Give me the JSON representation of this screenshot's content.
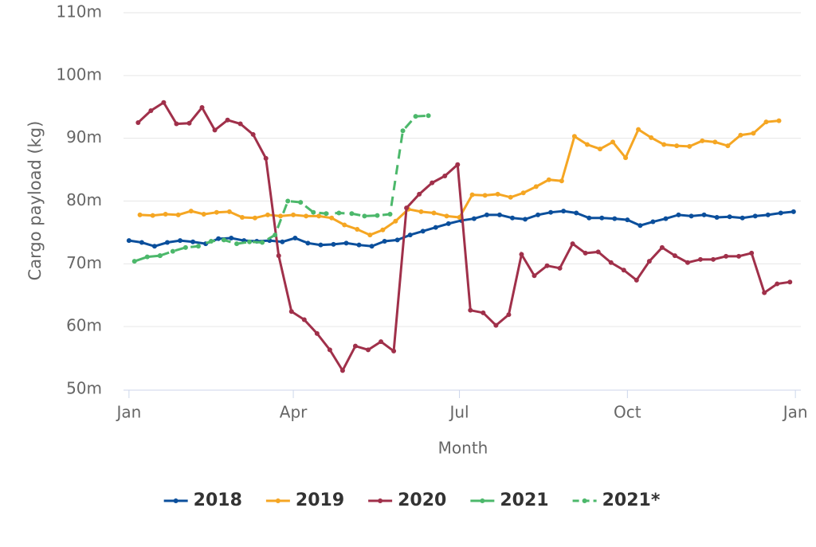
{
  "chart_data": {
    "type": "line",
    "ylabel": "Cargo payload (kg)",
    "xlabel": "Month",
    "xlim": [
      -3,
      368
    ],
    "xticks": [
      {
        "value": 0,
        "label": "Jan"
      },
      {
        "value": 90,
        "label": "Apr"
      },
      {
        "value": 181,
        "label": "Jul"
      },
      {
        "value": 273,
        "label": "Oct"
      },
      {
        "value": 365,
        "label": "Jan"
      }
    ],
    "ylim": [
      50,
      110
    ],
    "yticks": [
      {
        "value": 50,
        "label": "50m"
      },
      {
        "value": 60,
        "label": "60m"
      },
      {
        "value": 70,
        "label": "70m"
      },
      {
        "value": 80,
        "label": "80m"
      },
      {
        "value": 90,
        "label": "90m"
      },
      {
        "value": 100,
        "label": "100m"
      },
      {
        "value": 110,
        "label": "110m"
      }
    ],
    "grid": true,
    "legend": "bottom",
    "series": [
      {
        "name": "2018",
        "color": "#0b4f9c",
        "dashed": false,
        "x": [
          0,
          7,
          14,
          21,
          28,
          35,
          42,
          49,
          56,
          63,
          70,
          77,
          84,
          91,
          98,
          105,
          112,
          119,
          126,
          133,
          140,
          147,
          154,
          161,
          168,
          175,
          182,
          189,
          196,
          203,
          210,
          217,
          224,
          231,
          238,
          245,
          252,
          259,
          266,
          273,
          280,
          287,
          294,
          301,
          308,
          315,
          322,
          329,
          336,
          343,
          350,
          357,
          364
        ],
        "values": [
          73.7,
          73.4,
          72.8,
          73.4,
          73.7,
          73.5,
          73.2,
          74.0,
          74.1,
          73.7,
          73.6,
          73.7,
          73.5,
          74.1,
          73.3,
          73.0,
          73.1,
          73.3,
          73.0,
          72.8,
          73.6,
          73.8,
          74.6,
          75.2,
          75.8,
          76.4,
          76.9,
          77.2,
          77.8,
          77.8,
          77.3,
          77.1,
          77.8,
          78.2,
          78.4,
          78.1,
          77.3,
          77.3,
          77.2,
          77.0,
          76.1,
          76.7,
          77.2,
          77.8,
          77.6,
          77.8,
          77.4,
          77.5,
          77.3,
          77.6,
          77.8,
          78.1,
          78.3
        ]
      },
      {
        "name": "2019",
        "color": "#f5a623",
        "dashed": false,
        "x": [
          6,
          13,
          20,
          27,
          34,
          41,
          48,
          55,
          62,
          69,
          76,
          83,
          90,
          97,
          104,
          111,
          118,
          125,
          132,
          139,
          146,
          153,
          160,
          167,
          174,
          181,
          188,
          195,
          202,
          209,
          216,
          223,
          230,
          237,
          244,
          251,
          258,
          265,
          272,
          279,
          286,
          293,
          300,
          307,
          314,
          321,
          328,
          335,
          342,
          349,
          356
        ],
        "values": [
          77.8,
          77.7,
          77.9,
          77.8,
          78.4,
          77.9,
          78.2,
          78.3,
          77.4,
          77.3,
          77.8,
          77.6,
          77.8,
          77.6,
          77.6,
          77.3,
          76.2,
          75.5,
          74.6,
          75.4,
          76.8,
          78.7,
          78.3,
          78.1,
          77.6,
          77.4,
          81.0,
          80.9,
          81.1,
          80.6,
          81.3,
          82.3,
          83.4,
          83.2,
          90.3,
          89.0,
          88.3,
          89.4,
          86.9,
          91.4,
          90.1,
          89.0,
          88.8,
          88.7,
          89.6,
          89.4,
          88.8,
          90.5,
          90.8,
          92.6,
          92.8
        ]
      },
      {
        "name": "2020",
        "color": "#a0304a",
        "dashed": false,
        "x": [
          5,
          12,
          19,
          26,
          33,
          40,
          47,
          54,
          61,
          68,
          75,
          82,
          89,
          96,
          103,
          110,
          117,
          124,
          131,
          138,
          145,
          152,
          159,
          166,
          173,
          180,
          187,
          194,
          201,
          208,
          215,
          222,
          229,
          236,
          243,
          250,
          257,
          264,
          271,
          278,
          285,
          292,
          299,
          306,
          313,
          320,
          327,
          334,
          341,
          348,
          355,
          362
        ],
        "values": [
          92.5,
          94.4,
          95.7,
          92.3,
          92.4,
          94.9,
          91.3,
          92.9,
          92.3,
          90.6,
          86.8,
          71.3,
          62.4,
          61.1,
          58.9,
          56.3,
          53.0,
          56.9,
          56.3,
          57.6,
          56.1,
          78.9,
          81.1,
          82.9,
          84.0,
          85.8,
          62.6,
          62.2,
          60.2,
          61.9,
          71.5,
          68.1,
          69.7,
          69.3,
          73.2,
          71.7,
          71.9,
          70.2,
          69.0,
          67.4,
          70.4,
          72.6,
          71.3,
          70.2,
          70.7,
          70.7,
          71.2,
          71.2,
          71.7,
          65.4,
          66.8,
          67.1
        ]
      },
      {
        "name": "2021",
        "color": "#4cb86b",
        "dashed": false,
        "x": [
          3,
          10,
          17
        ],
        "values": [
          70.4,
          71.1,
          71.3
        ]
      },
      {
        "name": "2021*",
        "color": "#4cb86b",
        "dashed": true,
        "x": [
          17,
          24,
          31,
          38,
          45,
          52,
          59,
          66,
          73,
          80,
          87,
          94,
          101,
          108,
          115,
          122,
          129,
          136,
          143,
          150,
          157,
          164
        ],
        "values": [
          71.3,
          72.0,
          72.6,
          72.8,
          73.6,
          73.8,
          73.2,
          73.5,
          73.4,
          74.6,
          80.0,
          79.8,
          78.2,
          78.0,
          78.1,
          78.0,
          77.6,
          77.7,
          77.9,
          91.2,
          93.5,
          93.6
        ]
      }
    ]
  }
}
